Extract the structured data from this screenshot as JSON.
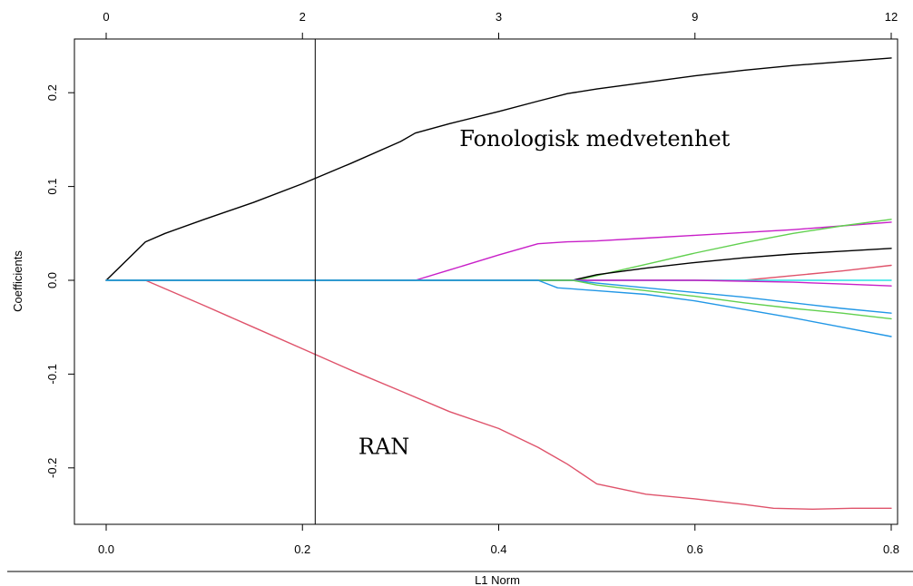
{
  "chart_data": {
    "type": "line",
    "title": "",
    "xlabel": "L1 Norm",
    "ylabel": "Coefficients",
    "xlim": [
      0,
      0.8
    ],
    "ylim": [
      -0.25,
      0.25
    ],
    "grid": false,
    "legend": "none",
    "x_ticks": [
      {
        "value": 0.0,
        "label": "0.0"
      },
      {
        "value": 0.2,
        "label": "0.2"
      },
      {
        "value": 0.4,
        "label": "0.4"
      },
      {
        "value": 0.6,
        "label": "0.6"
      },
      {
        "value": 0.8,
        "label": "0.8"
      }
    ],
    "y_ticks": [
      {
        "value": -0.2,
        "label": "-0.2"
      },
      {
        "value": -0.1,
        "label": "-0.1"
      },
      {
        "value": 0.0,
        "label": "0.0"
      },
      {
        "value": 0.1,
        "label": "0.1"
      },
      {
        "value": 0.2,
        "label": "0.2"
      }
    ],
    "top_axis": [
      {
        "value": 0.0,
        "label": "0"
      },
      {
        "value": 0.2,
        "label": "2"
      },
      {
        "value": 0.4,
        "label": "3"
      },
      {
        "value": 0.6,
        "label": "9"
      },
      {
        "value": 0.8,
        "label": "12"
      }
    ],
    "vline": {
      "x": 0.213
    },
    "annotations": [
      {
        "text": "Fonologisk medvetenhet",
        "x": 0.36,
        "y": 0.143
      },
      {
        "text": "RAN",
        "x": 0.257,
        "y": -0.185
      }
    ],
    "series": [
      {
        "color": "#000000",
        "x": [
          0.0,
          0.04,
          0.06,
          0.1,
          0.15,
          0.2,
          0.25,
          0.3,
          0.315,
          0.35,
          0.4,
          0.44,
          0.47,
          0.5,
          0.55,
          0.6,
          0.65,
          0.7,
          0.75,
          0.8
        ],
        "y": [
          0.0,
          0.041,
          0.05,
          0.065,
          0.083,
          0.103,
          0.125,
          0.148,
          0.157,
          0.167,
          0.18,
          0.191,
          0.199,
          0.204,
          0.211,
          0.218,
          0.224,
          0.229,
          0.233,
          0.237
        ]
      },
      {
        "color": "#DF536B",
        "x": [
          0.0,
          0.04,
          0.1,
          0.15,
          0.2,
          0.25,
          0.3,
          0.35,
          0.4,
          0.44,
          0.47,
          0.5,
          0.55,
          0.6,
          0.65,
          0.68,
          0.72,
          0.76,
          0.8
        ],
        "y": [
          0.0,
          0.0,
          -0.027,
          -0.05,
          -0.073,
          -0.096,
          -0.118,
          -0.14,
          -0.158,
          -0.178,
          -0.196,
          -0.217,
          -0.228,
          -0.233,
          -0.239,
          -0.243,
          -0.244,
          -0.243,
          -0.243
        ]
      },
      {
        "color": "#C81FC8",
        "x": [
          0.0,
          0.315,
          0.35,
          0.4,
          0.44,
          0.47,
          0.5,
          0.55,
          0.6,
          0.65,
          0.7,
          0.75,
          0.8
        ],
        "y": [
          0.0,
          0.0,
          0.011,
          0.027,
          0.039,
          0.041,
          0.042,
          0.045,
          0.048,
          0.051,
          0.054,
          0.058,
          0.062
        ]
      },
      {
        "color": "#61D04F",
        "x": [
          0.0,
          0.44,
          0.48,
          0.5,
          0.55,
          0.6,
          0.65,
          0.7,
          0.75,
          0.8
        ],
        "y": [
          0.0,
          0.0,
          0.0,
          0.005,
          0.017,
          0.029,
          0.04,
          0.05,
          0.058,
          0.065
        ]
      },
      {
        "color": "#000000",
        "x": [
          0.0,
          0.475,
          0.5,
          0.55,
          0.6,
          0.65,
          0.7,
          0.75,
          0.8
        ],
        "y": [
          0.0,
          0.0,
          0.006,
          0.013,
          0.019,
          0.024,
          0.028,
          0.031,
          0.034
        ]
      },
      {
        "color": "#DF536B",
        "x": [
          0.0,
          0.65,
          0.7,
          0.75,
          0.8
        ],
        "y": [
          0.0,
          0.0,
          0.005,
          0.01,
          0.016
        ]
      },
      {
        "color": "#28E2E5",
        "x": [
          0.0,
          0.75,
          0.8
        ],
        "y": [
          0.0,
          0.0,
          0.0
        ]
      },
      {
        "color": "#C81FC8",
        "x": [
          0.0,
          0.6,
          0.65,
          0.7,
          0.75,
          0.8
        ],
        "y": [
          0.0,
          0.0,
          -0.001,
          -0.002,
          -0.004,
          -0.006
        ]
      },
      {
        "color": "#2297E6",
        "x": [
          0.0,
          0.475,
          0.5,
          0.55,
          0.6,
          0.65,
          0.7,
          0.75,
          0.8
        ],
        "y": [
          0.0,
          0.0,
          -0.003,
          -0.008,
          -0.013,
          -0.018,
          -0.024,
          -0.03,
          -0.035
        ]
      },
      {
        "color": "#61D04F",
        "x": [
          0.0,
          0.475,
          0.5,
          0.55,
          0.6,
          0.65,
          0.7,
          0.75,
          0.8
        ],
        "y": [
          0.0,
          0.0,
          -0.005,
          -0.011,
          -0.017,
          -0.024,
          -0.03,
          -0.035,
          -0.041
        ]
      },
      {
        "color": "#2297E6",
        "x": [
          0.0,
          0.44,
          0.46,
          0.5,
          0.55,
          0.6,
          0.65,
          0.7,
          0.75,
          0.8
        ],
        "y": [
          0.0,
          0.0,
          -0.008,
          -0.011,
          -0.015,
          -0.022,
          -0.031,
          -0.04,
          -0.05,
          -0.06
        ]
      }
    ]
  }
}
